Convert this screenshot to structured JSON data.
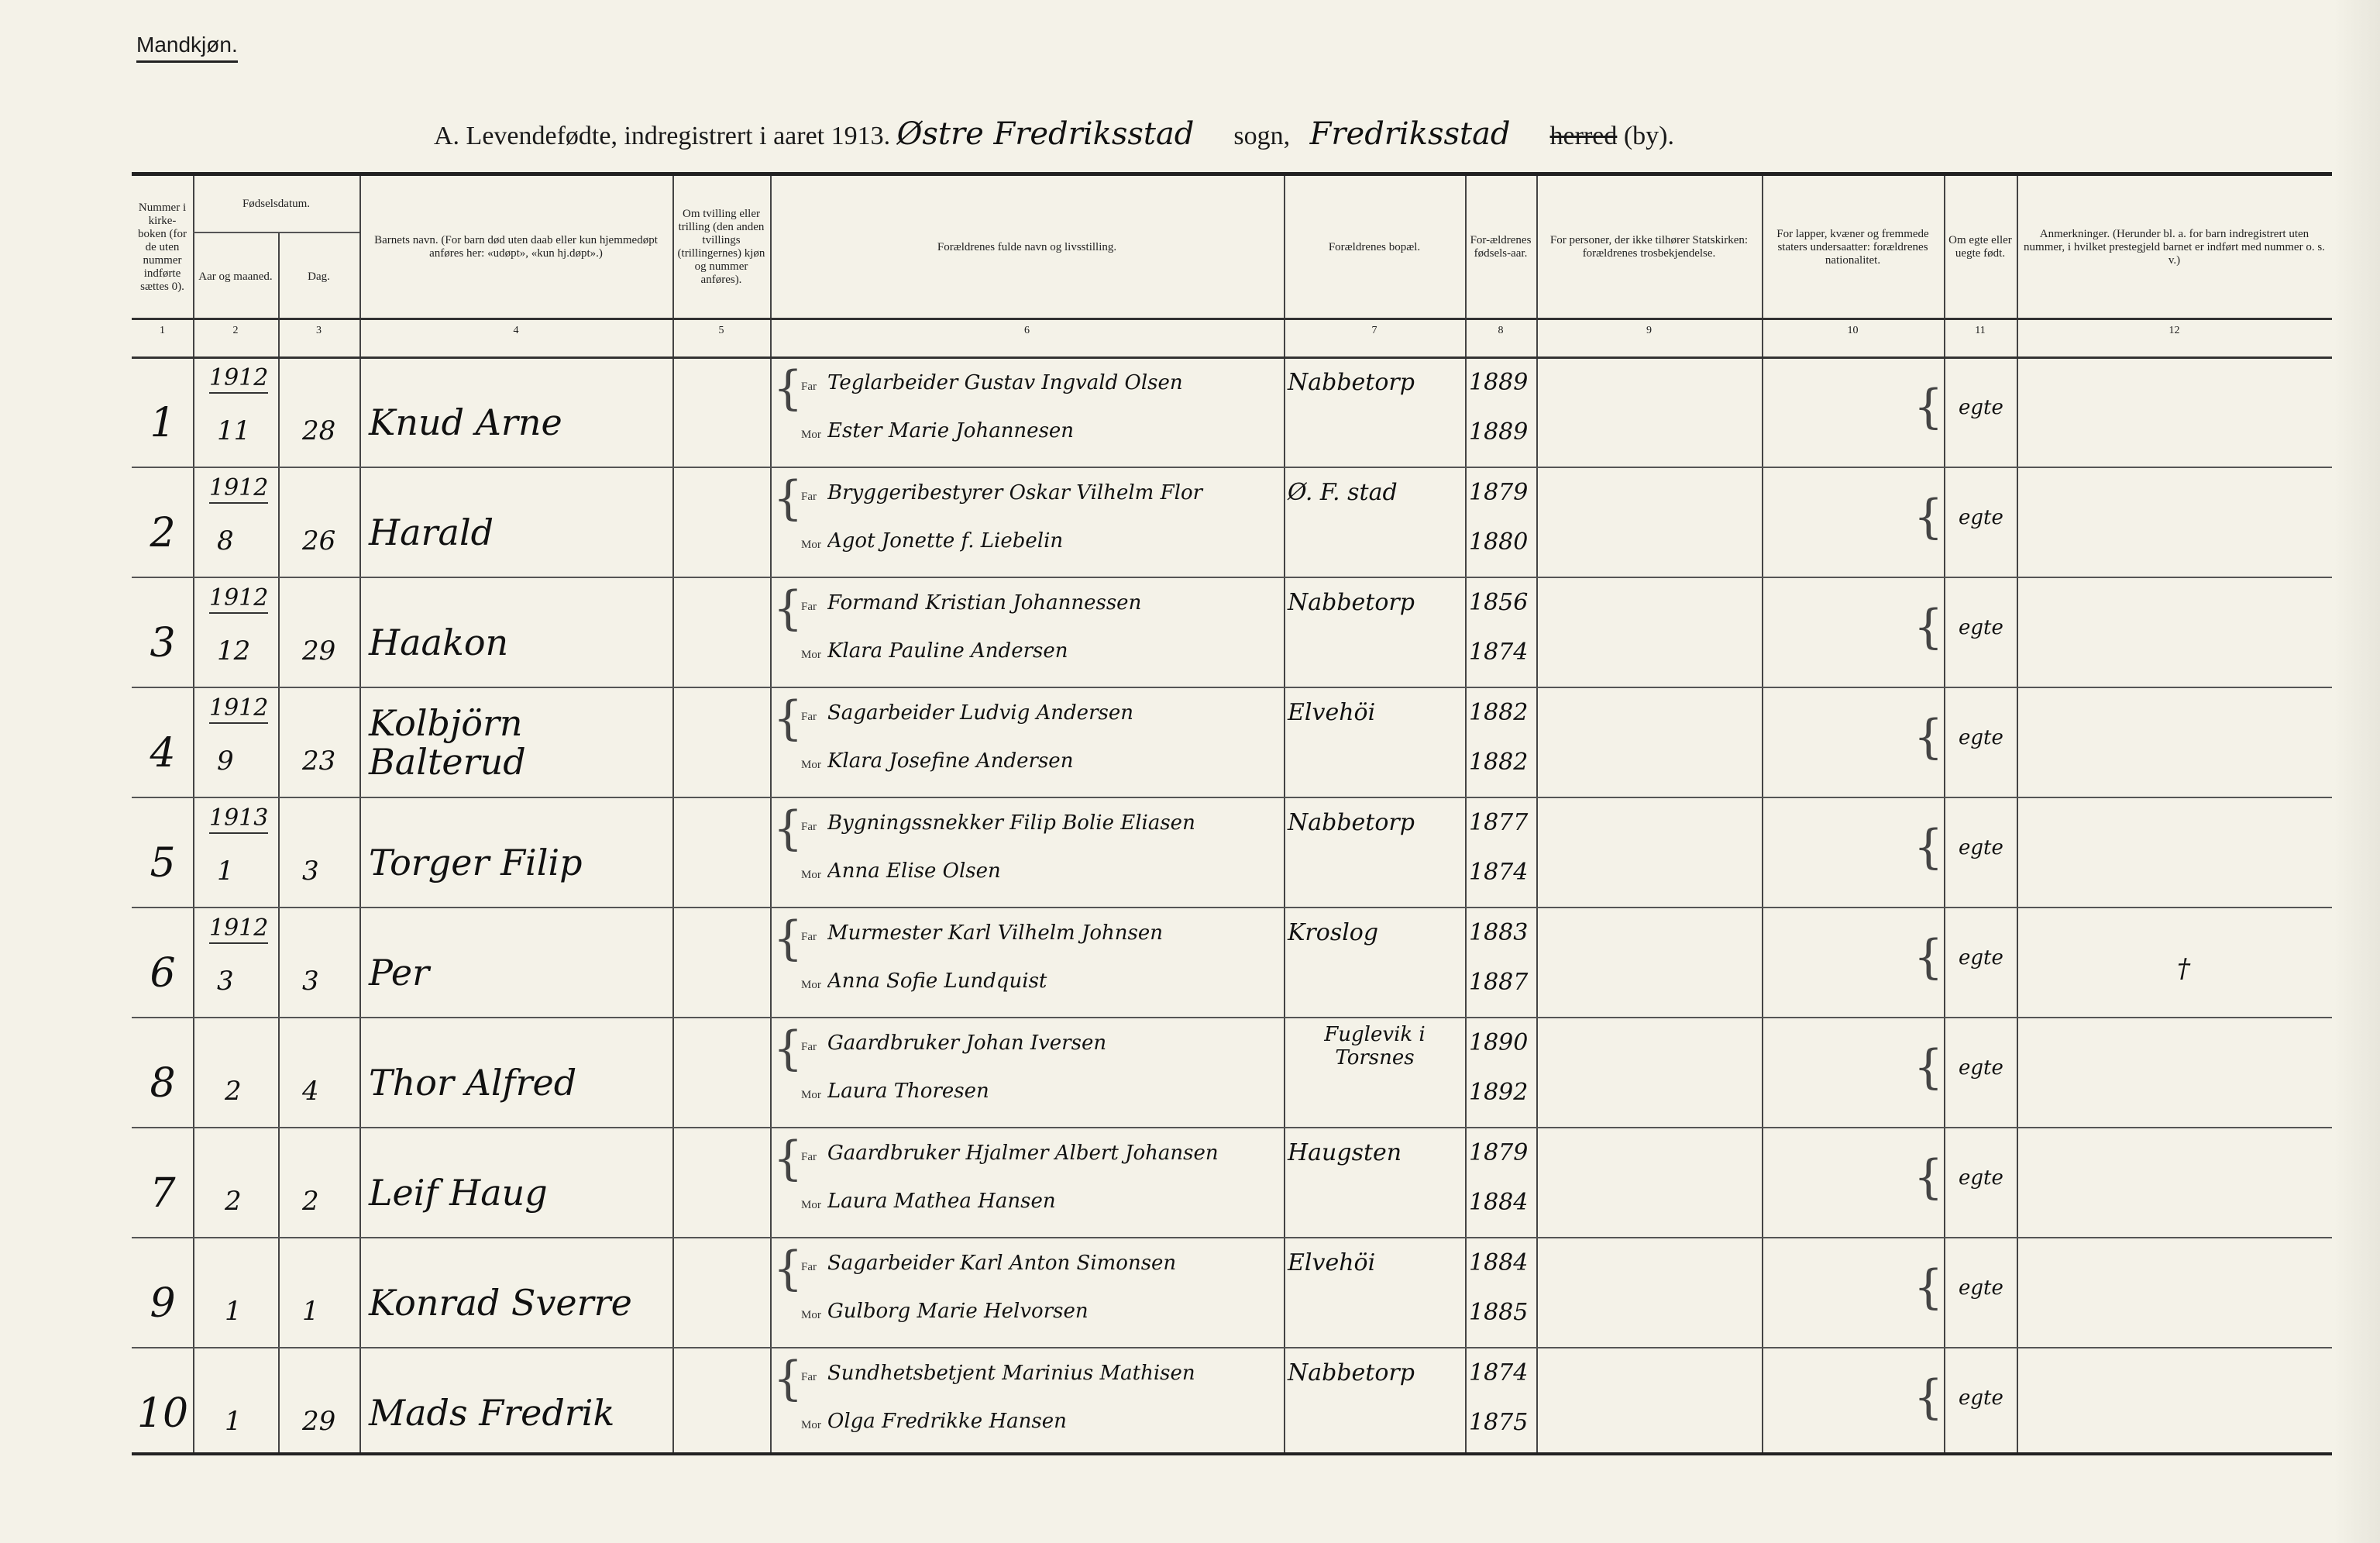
{
  "header": {
    "gender": "Mandkjøn.",
    "title_prefix": "A. Levendefødte, indregistrert i aaret 1913.",
    "parish_hw": "Østre Fredriksstad",
    "sogn": "sogn,",
    "district_hw": "Fredriksstad",
    "herred": "herred",
    "by": "(by)."
  },
  "columns": [
    {
      "num": "1",
      "label": "Nummer i kirke-boken (for de uten nummer indførte sættes 0)."
    },
    {
      "num": "2",
      "label": "Aar og maaned."
    },
    {
      "num": "3",
      "label": "Dag."
    },
    {
      "num": "4",
      "label": "Barnets navn. (For barn død uten daab eller kun hjemmedøpt anføres her: «udøpt», «kun hj.døpt».)"
    },
    {
      "num": "5",
      "label": "Om tvilling eller trilling (den anden tvillings (trillingernes) kjøn og nummer anføres)."
    },
    {
      "num": "6",
      "label": "Forældrenes fulde navn og livsstilling."
    },
    {
      "num": "7",
      "label": "Forældrenes bopæl."
    },
    {
      "num": "8",
      "label": "For-ældrenes fødsels-aar."
    },
    {
      "num": "9",
      "label": "For personer, der ikke tilhører Statskirken: forældrenes trosbekjendelse."
    },
    {
      "num": "10",
      "label": "For lapper, kvæner og fremmede staters undersaatter: forældrenes nationalitet."
    },
    {
      "num": "11",
      "label": "Om egte eller uegte født."
    },
    {
      "num": "12",
      "label": "Anmerkninger. (Herunder bl. a. for barn indregistrert uten nummer, i hvilket prestegjeld barnet er indført med nummer o. s. v.)"
    }
  ],
  "group_label": "Fødselsdatum.",
  "far_label": "Far",
  "mor_label": "Mor",
  "rows": [
    {
      "nr": "1",
      "year": "1912",
      "month": "11",
      "day": "28",
      "name": "Knud Arne",
      "far": "Teglarbeider Gustav Ingvald Olsen",
      "mor": "Ester Marie Johannesen",
      "bopael": "Nabbetorp",
      "far_aar": "1889",
      "mor_aar": "1889",
      "egte": "egte",
      "anm": ""
    },
    {
      "nr": "2",
      "year": "1912",
      "month": "8",
      "day": "26",
      "name": "Harald",
      "far": "Bryggeribestyrer Oskar Vilhelm Flor",
      "mor": "Agot Jonette f. Liebelin",
      "bopael": "Ø. F. stad",
      "far_aar": "1879",
      "mor_aar": "1880",
      "egte": "egte",
      "anm": ""
    },
    {
      "nr": "3",
      "year": "1912",
      "month": "12",
      "day": "29",
      "name": "Haakon",
      "far": "Formand Kristian Johannessen",
      "mor": "Klara Pauline Andersen",
      "bopael": "Nabbetorp",
      "far_aar": "1856",
      "mor_aar": "1874",
      "egte": "egte",
      "anm": ""
    },
    {
      "nr": "4",
      "year": "1912",
      "month": "9",
      "day": "23",
      "name": "Kolbjörn Balterud",
      "far": "Sagarbeider Ludvig Andersen",
      "mor": "Klara Josefine Andersen",
      "bopael": "Elvehöi",
      "far_aar": "1882",
      "mor_aar": "1882",
      "egte": "egte",
      "anm": ""
    },
    {
      "nr": "5",
      "year": "1913",
      "month": "1",
      "day": "3",
      "name": "Torger Filip",
      "far": "Bygningssnekker Filip Bolie Eliasen",
      "mor": "Anna Elise Olsen",
      "bopael": "Nabbetorp",
      "far_aar": "1877",
      "mor_aar": "1874",
      "egte": "egte",
      "anm": ""
    },
    {
      "nr": "6",
      "year": "1912",
      "month": "3",
      "day": "3",
      "name": "Per",
      "far": "Murmester Karl Vilhelm Johnsen",
      "mor": "Anna Sofie Lundquist",
      "bopael": "Kroslog",
      "far_aar": "1883",
      "mor_aar": "1887",
      "egte": "egte",
      "anm": "†"
    },
    {
      "nr": "8",
      "year": "",
      "month": "2",
      "day": "4",
      "name": "Thor Alfred",
      "far": "Gaardbruker Johan Iversen",
      "mor": "Laura Thoresen",
      "bopael": "Fuglevik i Torsnes",
      "far_aar": "1890",
      "mor_aar": "1892",
      "egte": "egte",
      "anm": ""
    },
    {
      "nr": "7",
      "year": "",
      "month": "2",
      "day": "2",
      "name": "Leif Haug",
      "far": "Gaardbruker Hjalmer Albert Johansen",
      "mor": "Laura Mathea Hansen",
      "bopael": "Haugsten",
      "far_aar": "1879",
      "mor_aar": "1884",
      "egte": "egte",
      "anm": ""
    },
    {
      "nr": "9",
      "year": "",
      "month": "1",
      "day": "1",
      "name": "Konrad Sverre",
      "far": "Sagarbeider Karl Anton Simonsen",
      "mor": "Gulborg Marie Helvorsen",
      "bopael": "Elvehöi",
      "far_aar": "1884",
      "mor_aar": "1885",
      "egte": "egte",
      "anm": ""
    },
    {
      "nr": "10",
      "year": "",
      "month": "1",
      "day": "29",
      "name": "Mads Fredrik",
      "far": "Sundhetsbetjent Marinius Mathisen",
      "mor": "Olga Fredrikke Hansen",
      "bopael": "Nabbetorp",
      "far_aar": "1874",
      "mor_aar": "1875",
      "egte": "egte",
      "anm": ""
    }
  ]
}
